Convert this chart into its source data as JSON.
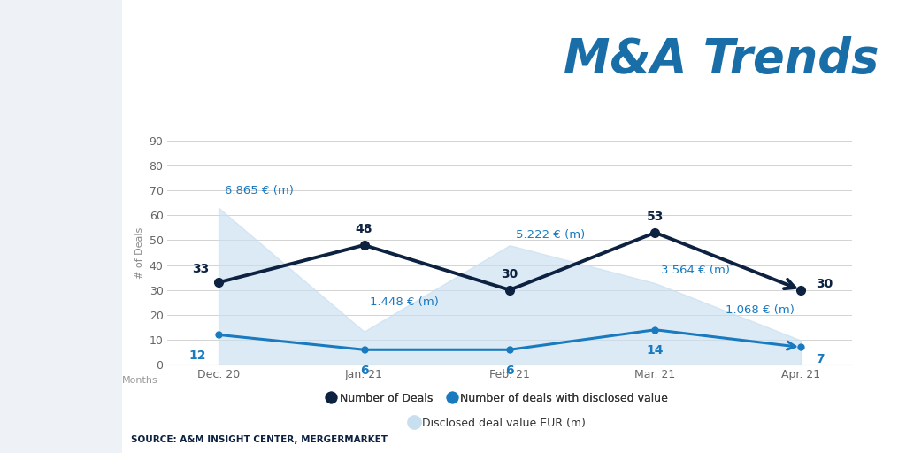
{
  "title": "M&A Trends",
  "title_color": "#1a6ea8",
  "title_fontsize": 38,
  "source_text": "SOURCE: A&M INSIGHT CENTER, MERGERMARKET",
  "months": [
    "Dec. 20",
    "Jan. 21",
    "Feb. 21",
    "Mar. 21",
    "Apr. 21"
  ],
  "num_deals": [
    33,
    48,
    30,
    53,
    30
  ],
  "num_disclosed": [
    12,
    6,
    6,
    14,
    7
  ],
  "disclosed_values": [
    6.865,
    1.448,
    5.222,
    3.564,
    1.068
  ],
  "disclosed_value_labels": [
    "6.865 € (m)",
    "1.448 € (m)",
    "5.222 € (m)",
    "3.564 € (m)",
    "1.068 € (m)"
  ],
  "disclosed_value_y": [
    70,
    25,
    52,
    38,
    22
  ],
  "disclosed_value_ha": [
    "left",
    "left",
    "left",
    "left",
    "right"
  ],
  "disclosed_value_xoff": [
    5,
    5,
    5,
    5,
    -5
  ],
  "ylim": [
    0,
    90
  ],
  "yticks": [
    0,
    10,
    20,
    30,
    40,
    50,
    60,
    70,
    80,
    90
  ],
  "ylabel": "# of Deals",
  "xlabel": "Months",
  "line_deals_color": "#0d2240",
  "line_disclosed_color": "#1a7abf",
  "fill_color": "#c8dff0",
  "fill_alpha": 0.65,
  "background_color": "#eef1f6",
  "panel_color": "#ffffff",
  "left_bar_color": "#dde3ec",
  "grid_color": "#cccccc",
  "legend_items": [
    "Number of Deals",
    "Number of deals with disclosed value",
    "Disclosed deal value EUR (m)"
  ],
  "deal_label_offsets_x": [
    -8,
    0,
    0,
    0,
    12
  ],
  "deal_label_offsets_y": [
    6,
    8,
    8,
    8,
    0
  ],
  "deal_label_ha": [
    "right",
    "center",
    "center",
    "center",
    "left"
  ],
  "disc_label_offsets_x": [
    -10,
    0,
    0,
    0,
    12
  ],
  "disc_label_offsets_y": [
    -12,
    -12,
    -12,
    -12,
    -5
  ],
  "disc_label_ha": [
    "right",
    "center",
    "center",
    "center",
    "left"
  ],
  "scale_numerator": 63.0,
  "scale_denominator": 6.865
}
